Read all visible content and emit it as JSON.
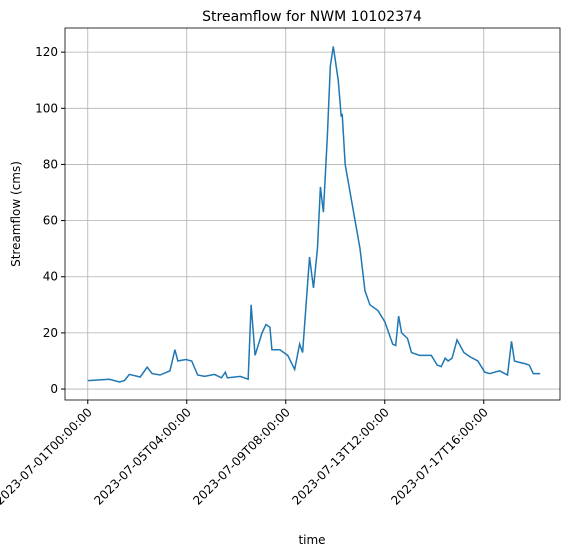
{
  "chart_data": {
    "type": "line",
    "title": "Streamflow for NWM 10102374",
    "xlabel": "time",
    "ylabel": "Streamflow (cms)",
    "x": [
      "2023-07-01T00:00:00",
      "2023-07-01T22:00:00",
      "2023-07-02T08:00:00",
      "2023-07-02T13:00:00",
      "2023-07-02T18:00:00",
      "2023-07-03T05:00:00",
      "2023-07-03T12:00:00",
      "2023-07-03T17:00:00",
      "2023-07-04T01:00:00",
      "2023-07-04T11:00:00",
      "2023-07-04T16:00:00",
      "2023-07-04T19:00:00",
      "2023-07-05T03:00:00",
      "2023-07-05T09:00:00",
      "2023-07-05T15:00:00",
      "2023-07-05T22:00:00",
      "2023-07-06T08:00:00",
      "2023-07-06T15:00:00",
      "2023-07-06T19:00:00",
      "2023-07-06T21:00:00",
      "2023-07-07T10:00:00",
      "2023-07-07T18:00:00",
      "2023-07-07T21:00:00",
      "2023-07-08T01:00:00",
      "2023-07-08T08:00:00",
      "2023-07-08T12:00:00",
      "2023-07-08T16:00:00",
      "2023-07-08T18:00:00",
      "2023-07-09T02:00:00",
      "2023-07-09T10:00:00",
      "2023-07-09T17:00:00",
      "2023-07-09T22:00:00",
      "2023-07-10T01:00:00",
      "2023-07-10T08:00:00",
      "2023-07-10T12:00:00",
      "2023-07-10T16:00:00",
      "2023-07-10T19:00:00",
      "2023-07-10T22:00:00",
      "2023-07-11T02:00:00",
      "2023-07-11T05:00:00",
      "2023-07-11T08:00:00",
      "2023-07-11T13:00:00",
      "2023-07-11T16:00:00",
      "2023-07-11T17:00:00",
      "2023-07-11T20:00:00",
      "2023-07-12T01:00:00",
      "2023-07-12T06:00:00",
      "2023-07-12T11:00:00",
      "2023-07-12T16:00:00",
      "2023-07-12T21:00:00",
      "2023-07-13T05:00:00",
      "2023-07-13T12:00:00",
      "2023-07-13T20:00:00",
      "2023-07-13T23:00:00",
      "2023-07-14T02:00:00",
      "2023-07-14T05:00:00",
      "2023-07-14T11:00:00",
      "2023-07-14T15:00:00",
      "2023-07-14T23:00:00",
      "2023-07-15T11:00:00",
      "2023-07-15T17:00:00",
      "2023-07-15T21:00:00",
      "2023-07-16T01:00:00",
      "2023-07-16T04:00:00",
      "2023-07-16T08:00:00",
      "2023-07-16T13:00:00",
      "2023-07-16T20:00:00",
      "2023-07-17T02:00:00",
      "2023-07-17T10:00:00",
      "2023-07-17T17:00:00",
      "2023-07-17T22:00:00",
      "2023-07-18T08:00:00",
      "2023-07-18T16:00:00",
      "2023-07-18T20:00:00",
      "2023-07-18T23:00:00",
      "2023-07-19T04:00:00",
      "2023-07-19T10:00:00",
      "2023-07-19T14:00:00",
      "2023-07-19T18:00:00",
      "2023-07-20T01:00:00"
    ],
    "series": [
      {
        "name": "Streamflow",
        "color": "#1f77b4",
        "values": [
          3,
          3.5,
          2.5,
          3,
          5.2,
          4.3,
          7.8,
          5.5,
          5,
          6.5,
          14,
          10,
          10.5,
          10,
          5,
          4.5,
          5.2,
          4,
          6,
          4,
          4.5,
          3.5,
          30,
          12,
          20,
          23,
          22,
          14,
          14,
          12,
          7,
          16,
          13,
          47,
          36,
          50,
          72,
          63,
          90,
          115,
          122,
          110,
          97,
          98,
          80,
          70,
          60,
          50,
          35,
          30,
          28,
          24,
          16,
          15.5,
          26,
          20,
          18,
          13,
          12,
          12,
          8.5,
          8,
          11,
          10,
          11,
          17.5,
          13,
          11.5,
          10,
          6,
          5.5,
          6.5,
          5,
          17,
          10,
          9.5,
          9,
          8.5,
          5.5,
          5.5
        ]
      }
    ],
    "xlim": [
      "2023-06-30T01:00:00",
      "2023-07-20T21:00:00"
    ],
    "xticks": [
      "2023-07-01T00:00:00",
      "2023-07-05T04:00:00",
      "2023-07-09T08:00:00",
      "2023-07-13T12:00:00",
      "2023-07-17T16:00:00"
    ],
    "ylim": [
      -3.9,
      128.6
    ],
    "yticks": [
      0,
      20,
      40,
      60,
      80,
      100,
      120
    ],
    "grid": true
  }
}
